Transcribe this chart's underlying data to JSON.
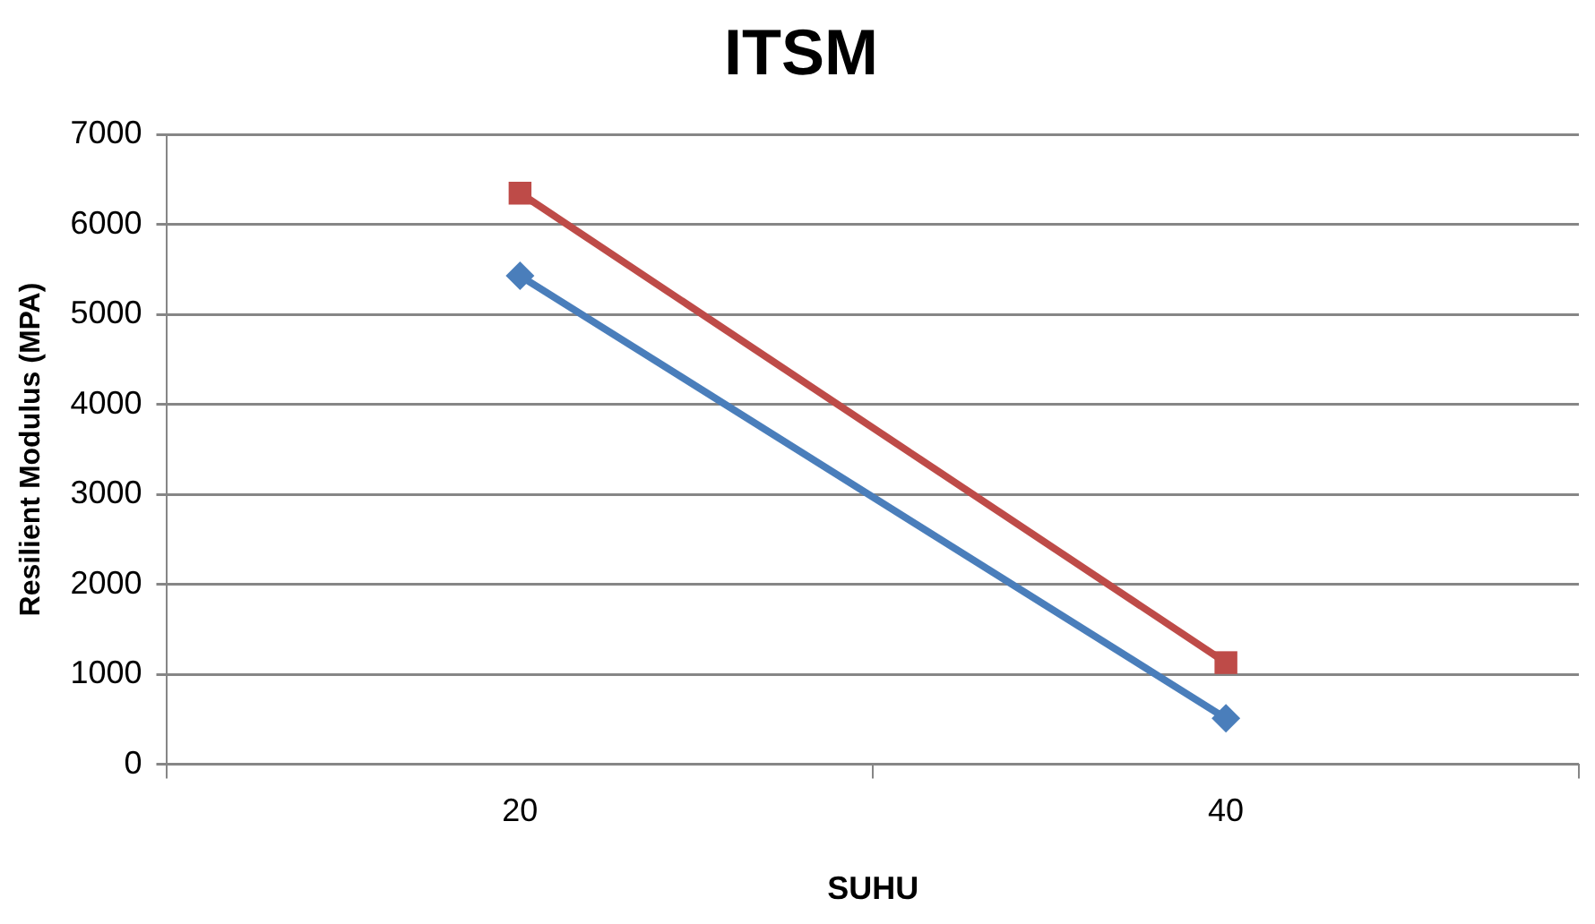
{
  "chart_data": {
    "type": "line",
    "title": "ITSM",
    "xlabel": "SUHU",
    "ylabel": "Resilient Modulus (MPA)",
    "categories": [
      "20",
      "40"
    ],
    "series": [
      {
        "color": "#4a7ebb",
        "values": [
          5430,
          510
        ],
        "marker": "diamond"
      },
      {
        "color": "#be4b48",
        "values": [
          6350,
          1130
        ],
        "marker": "square"
      }
    ],
    "ylim": [
      0,
      7000
    ],
    "yticks": [
      0,
      1000,
      2000,
      3000,
      4000,
      5000,
      6000,
      7000
    ],
    "grid": "y",
    "legend": false
  }
}
